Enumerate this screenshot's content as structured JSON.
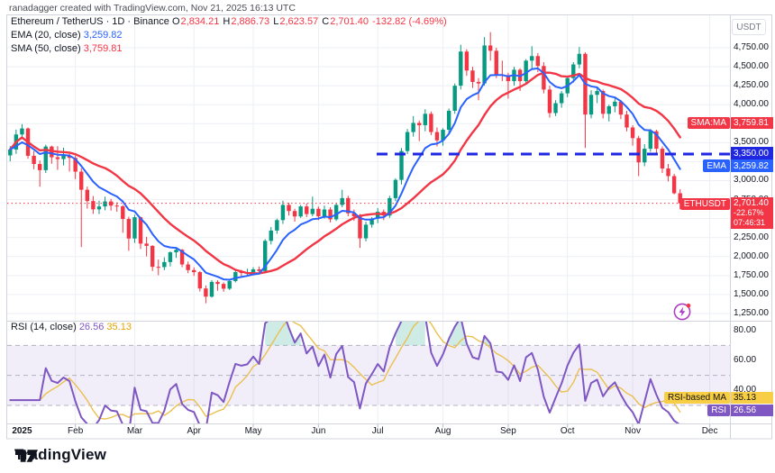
{
  "credit": "ranadagger created with TradingView.com, Nov 21, 2025 16:13 UTC",
  "legend": {
    "symbol_title": "Ethereum / TetherUS · 1D · Binance",
    "ohlc": {
      "o_label": "O",
      "o": "2,834.21",
      "h_label": "H",
      "h": "2,886.73",
      "l_label": "L",
      "l": "2,623.57",
      "c_label": "C",
      "c": "2,701.40",
      "change": "-132.82 (-4.69%)"
    },
    "ema_label": "EMA (20, close)",
    "ema_value": "3,259.82",
    "sma_label": "SMA (50, close)",
    "sma_value": "3,759.81",
    "rsi_label": "RSI (14, close)",
    "rsi_value": "26.56",
    "rsi_ma_value": "35.13"
  },
  "price_scale": {
    "currency": "USDT",
    "ticks": [
      {
        "label": "4,750.00",
        "value": 4750
      },
      {
        "label": "4,500.00",
        "value": 4500
      },
      {
        "label": "4,250.00",
        "value": 4250
      },
      {
        "label": "4,000.00",
        "value": 4000
      },
      {
        "label": "3,500.00",
        "value": 3500
      },
      {
        "label": "3,000.00",
        "value": 3000
      },
      {
        "label": "2,750.00",
        "value": 2750
      },
      {
        "label": "2,250.00",
        "value": 2250
      },
      {
        "label": "2,000.00",
        "value": 2000
      },
      {
        "label": "1,750.00",
        "value": 1750
      },
      {
        "label": "1,500.00",
        "value": 1500
      },
      {
        "label": "1,250.00",
        "value": 1250
      }
    ]
  },
  "rsi_scale": {
    "ticks": [
      {
        "label": "80.00",
        "value": 80
      },
      {
        "label": "60.00",
        "value": 60
      },
      {
        "label": "40.00",
        "value": 40
      }
    ]
  },
  "badges": {
    "sma": {
      "label": "SMA:MA",
      "value": "3,759.81"
    },
    "level": {
      "value": "3,350.00"
    },
    "ema": {
      "label": "EMA",
      "value": "3,259.82"
    },
    "symbol": {
      "label": "ETHUSDT",
      "value": "2,701.40",
      "change": "-22.67%",
      "countdown": "07:46:31"
    },
    "rsi_ma": {
      "label": "RSI-based MA",
      "value": "35.13"
    },
    "rsi": {
      "label": "RSI",
      "value": "26.56"
    }
  },
  "footer": {
    "brand": "TradingView"
  },
  "colors": {
    "up": "#089981",
    "down": "#F23645",
    "ema": "#2962FF",
    "sma": "#F23645",
    "level_line": "#1F27E0",
    "price_line": "#F23645",
    "rsi": "#7E57C2",
    "rsi_ma": "#EBC04F",
    "rsi_band_fill": "rgba(126,87,194,0.10)",
    "overbought_fill": "rgba(8,153,129,0.20)",
    "grid": "#EDEFF4",
    "frame": "#D1D4DC",
    "rsi_level_dash": "#A5A9B4",
    "text": "#131722",
    "muted": "#787B86"
  },
  "chart_data": {
    "type": "candlestick",
    "symbol": "ETHUSDT",
    "exchange": "Binance",
    "timeframe": "1D",
    "price_axis_range": [
      1150,
      5150
    ],
    "levels": {
      "horizontal_dashed_line": 3350.0,
      "current_price_line": 2701.4
    },
    "indicators": {
      "ema": {
        "display_period": 20,
        "bar_period": 8,
        "last": 3259.82
      },
      "sma": {
        "display_period": 50,
        "bar_period": 17,
        "last": 3759.81
      },
      "rsi": {
        "display_period": 14,
        "bar_period": 5,
        "last": 26.56,
        "levels": [
          70,
          50,
          30
        ],
        "band": [
          30,
          70
        ]
      },
      "rsi_ma": {
        "display_period": 14,
        "bar_period": 5,
        "last": 35.13
      }
    },
    "month_ticks": [
      {
        "label": "2025",
        "i": 2,
        "bold": true,
        "grid": false
      },
      {
        "label": "Feb",
        "i": 11
      },
      {
        "label": "Mar",
        "i": 21
      },
      {
        "label": "Apr",
        "i": 31
      },
      {
        "label": "May",
        "i": 41
      },
      {
        "label": "Jun",
        "i": 52
      },
      {
        "label": "Jul",
        "i": 62
      },
      {
        "label": "Aug",
        "i": 73
      },
      {
        "label": "Sep",
        "i": 84
      },
      {
        "label": "Oct",
        "i": 94
      },
      {
        "label": "Nov",
        "i": 105
      },
      {
        "label": "Dec",
        "i": 118
      }
    ],
    "candles": [
      [
        3332,
        3455,
        3255,
        3410
      ],
      [
        3410,
        3672,
        3352,
        3608
      ],
      [
        3608,
        3744,
        3560,
        3687
      ],
      [
        3687,
        3700,
        3288,
        3327
      ],
      [
        3327,
        3390,
        3150,
        3219
      ],
      [
        3219,
        3265,
        2920,
        3138
      ],
      [
        3138,
        3473,
        3100,
        3449
      ],
      [
        3449,
        3460,
        3222,
        3308
      ],
      [
        3308,
        3453,
        3142,
        3284
      ],
      [
        3284,
        3435,
        3200,
        3327
      ],
      [
        3327,
        3365,
        3120,
        3300
      ],
      [
        3300,
        3330,
        3020,
        3118
      ],
      [
        3118,
        3165,
        2125,
        2880
      ],
      [
        2880,
        2921,
        2632,
        2731
      ],
      [
        2731,
        2797,
        2562,
        2622
      ],
      [
        2622,
        2736,
        2560,
        2660
      ],
      [
        2660,
        2790,
        2610,
        2726
      ],
      [
        2726,
        2760,
        2605,
        2671
      ],
      [
        2671,
        2715,
        2590,
        2662
      ],
      [
        2662,
        2680,
        2313,
        2495
      ],
      [
        2495,
        2525,
        2076,
        2238
      ],
      [
        2238,
        2550,
        2180,
        2518
      ],
      [
        2518,
        2525,
        2100,
        2171
      ],
      [
        2171,
        2260,
        2002,
        2141
      ],
      [
        2141,
        2150,
        1810,
        1865
      ],
      [
        1865,
        1960,
        1754,
        1862
      ],
      [
        1862,
        1990,
        1821,
        1928
      ],
      [
        1928,
        2069,
        1871,
        2056
      ],
      [
        2056,
        2104,
        1984,
        2090
      ],
      [
        2090,
        2100,
        1860,
        1896
      ],
      [
        1896,
        1935,
        1781,
        1822
      ],
      [
        1822,
        1858,
        1745,
        1795
      ],
      [
        1795,
        1810,
        1540,
        1580
      ],
      [
        1580,
        1620,
        1385,
        1472
      ],
      [
        1472,
        1690,
        1460,
        1666
      ],
      [
        1666,
        1688,
        1550,
        1640
      ],
      [
        1640,
        1660,
        1537,
        1577
      ],
      [
        1577,
        1700,
        1560,
        1678
      ],
      [
        1678,
        1820,
        1660,
        1795
      ],
      [
        1795,
        1825,
        1730,
        1786
      ],
      [
        1786,
        1840,
        1750,
        1793
      ],
      [
        1793,
        1860,
        1756,
        1832
      ],
      [
        1832,
        1870,
        1770,
        1810
      ],
      [
        1810,
        2230,
        1800,
        2207
      ],
      [
        2207,
        2390,
        2160,
        2343
      ],
      [
        2343,
        2500,
        2300,
        2480
      ],
      [
        2480,
        2735,
        2430,
        2680
      ],
      [
        2680,
        2710,
        2540,
        2600
      ],
      [
        2600,
        2630,
        2460,
        2528
      ],
      [
        2528,
        2680,
        2510,
        2660
      ],
      [
        2660,
        2700,
        2520,
        2560
      ],
      [
        2560,
        2790,
        2530,
        2630
      ],
      [
        2630,
        2660,
        2480,
        2530
      ],
      [
        2530,
        2670,
        2500,
        2620
      ],
      [
        2620,
        2650,
        2450,
        2490
      ],
      [
        2490,
        2710,
        2470,
        2680
      ],
      [
        2680,
        2880,
        2650,
        2770
      ],
      [
        2770,
        2800,
        2530,
        2570
      ],
      [
        2570,
        2620,
        2470,
        2530
      ],
      [
        2530,
        2560,
        2115,
        2240
      ],
      [
        2240,
        2460,
        2200,
        2420
      ],
      [
        2420,
        2520,
        2380,
        2500
      ],
      [
        2500,
        2640,
        2440,
        2590
      ],
      [
        2590,
        2620,
        2480,
        2540
      ],
      [
        2540,
        2800,
        2510,
        2770
      ],
      [
        2770,
        3030,
        2730,
        3010
      ],
      [
        3010,
        3430,
        2950,
        3390
      ],
      [
        3390,
        3680,
        3350,
        3640
      ],
      [
        3640,
        3850,
        3580,
        3760
      ],
      [
        3760,
        3790,
        3520,
        3730
      ],
      [
        3730,
        3940,
        3650,
        3880
      ],
      [
        3880,
        3910,
        3600,
        3640
      ],
      [
        3640,
        3700,
        3450,
        3530
      ],
      [
        3530,
        3690,
        3460,
        3670
      ],
      [
        3670,
        3950,
        3620,
        3920
      ],
      [
        3920,
        4280,
        3880,
        4250
      ],
      [
        4250,
        4790,
        4200,
        4700
      ],
      [
        4700,
        4730,
        4380,
        4450
      ],
      [
        4450,
        4500,
        4220,
        4300
      ],
      [
        4300,
        4350,
        4060,
        4280
      ],
      [
        4280,
        4890,
        4250,
        4780
      ],
      [
        4780,
        4956,
        4580,
        4710
      ],
      [
        4710,
        4750,
        4350,
        4400
      ],
      [
        4400,
        4580,
        4310,
        4390
      ],
      [
        4390,
        4420,
        4080,
        4310
      ],
      [
        4310,
        4500,
        4250,
        4460
      ],
      [
        4460,
        4480,
        4180,
        4310
      ],
      [
        4310,
        4600,
        4280,
        4580
      ],
      [
        4580,
        4770,
        4470,
        4640
      ],
      [
        4640,
        4680,
        4430,
        4510
      ],
      [
        4510,
        4560,
        4150,
        4200
      ],
      [
        4200,
        4250,
        3830,
        3890
      ],
      [
        3890,
        4060,
        3850,
        4020
      ],
      [
        4020,
        4180,
        3960,
        4150
      ],
      [
        4150,
        4380,
        4100,
        4350
      ],
      [
        4350,
        4560,
        4290,
        4530
      ],
      [
        4530,
        4760,
        4480,
        4670
      ],
      [
        4670,
        4690,
        3430,
        3870
      ],
      [
        3870,
        4190,
        3820,
        4130
      ],
      [
        4130,
        4230,
        4020,
        4180
      ],
      [
        4180,
        4200,
        3820,
        3880
      ],
      [
        3880,
        4000,
        3780,
        3980
      ],
      [
        3980,
        4100,
        3900,
        4040
      ],
      [
        4040,
        4060,
        3810,
        3870
      ],
      [
        3870,
        3920,
        3650,
        3700
      ],
      [
        3700,
        3730,
        3460,
        3560
      ],
      [
        3560,
        3590,
        3060,
        3240
      ],
      [
        3240,
        3480,
        3190,
        3420
      ],
      [
        3420,
        3680,
        3380,
        3650
      ],
      [
        3650,
        3670,
        3360,
        3420
      ],
      [
        3420,
        3450,
        3100,
        3160
      ],
      [
        3160,
        3220,
        2990,
        3060
      ],
      [
        3060,
        3090,
        2820,
        2834
      ],
      [
        2834,
        2887,
        2623,
        2701
      ]
    ]
  }
}
